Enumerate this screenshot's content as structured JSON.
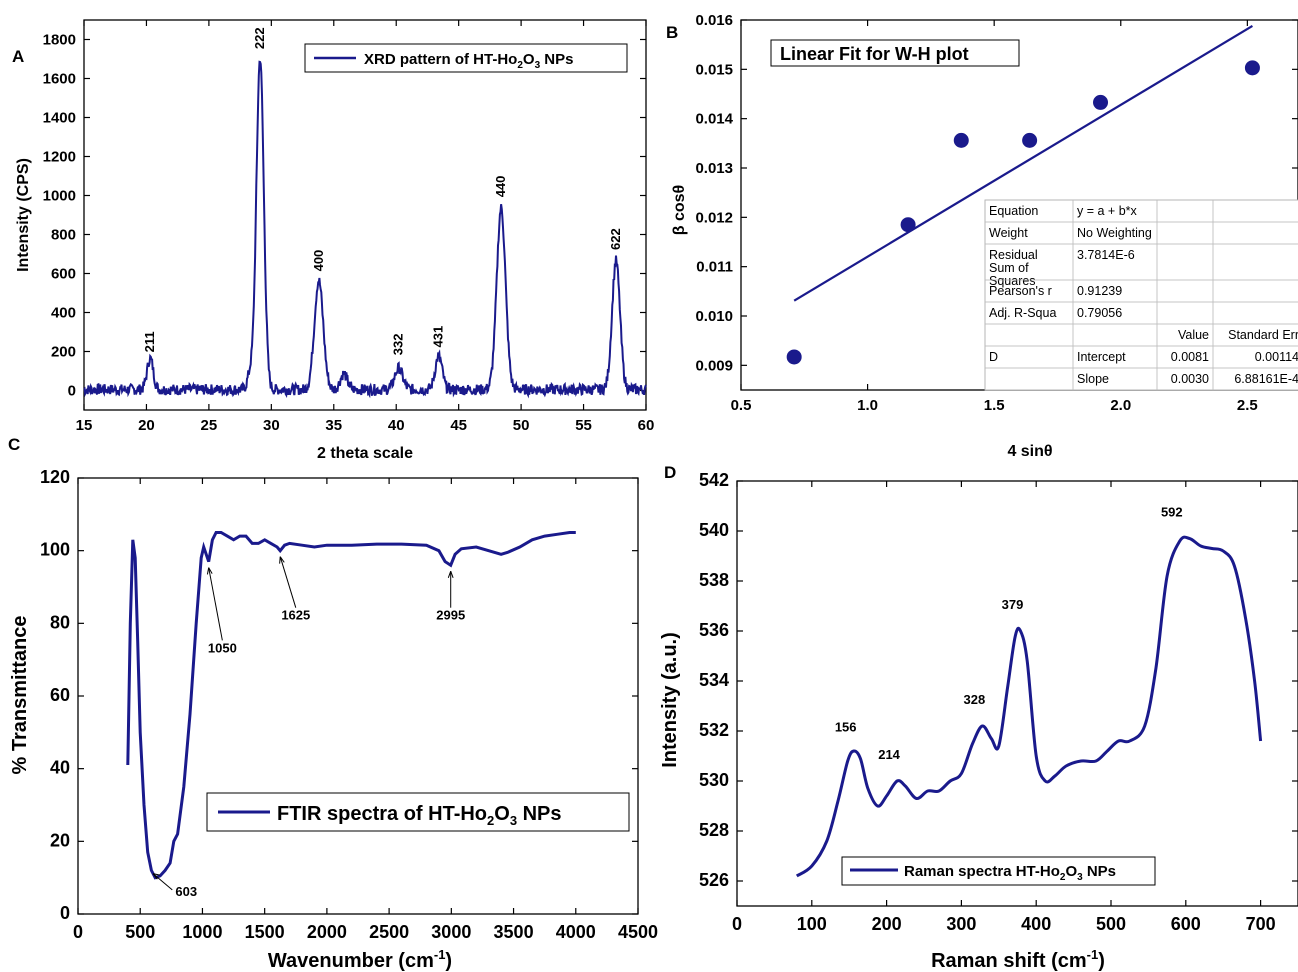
{
  "panels": {
    "A": {
      "letter": "A",
      "chart_data": {
        "type": "line",
        "xlabel": "2 theta scale",
        "ylabel": "Intensity (CPS)",
        "xlim": [
          15,
          60
        ],
        "ylim": [
          -100,
          1900
        ],
        "xticks": [
          "15",
          "20",
          "25",
          "30",
          "35",
          "40",
          "45",
          "50",
          "55",
          "60"
        ],
        "yticks": [
          "0",
          "200",
          "400",
          "600",
          "800",
          "1000",
          "1200",
          "1400",
          "1600",
          "1800"
        ],
        "legend": {
          "text": "XRD pattern of HT-Ho",
          "sub1": "2",
          "mid": "O",
          "sub2": "3",
          "tail": " NPs"
        },
        "series": [
          {
            "color": "#1a1a8c",
            "baseline": 5,
            "peaks": [
              {
                "x": 20.3,
                "h": 160,
                "w": 0.35
              },
              {
                "x": 28.3,
                "h": 80,
                "w": 0.3
              },
              {
                "x": 29.1,
                "h": 1700,
                "w": 0.42
              },
              {
                "x": 33.8,
                "h": 560,
                "w": 0.5
              },
              {
                "x": 35.8,
                "h": 80,
                "w": 0.4
              },
              {
                "x": 40.2,
                "h": 110,
                "w": 0.45
              },
              {
                "x": 43.4,
                "h": 170,
                "w": 0.4
              },
              {
                "x": 48.4,
                "h": 930,
                "w": 0.5
              },
              {
                "x": 57.6,
                "h": 660,
                "w": 0.45
              }
            ],
            "noise": 28
          }
        ],
        "peak_labels": [
          {
            "x": 20.3,
            "y": 165,
            "text": "211"
          },
          {
            "x": 29.1,
            "y": 1720,
            "text": "222"
          },
          {
            "x": 33.8,
            "y": 580,
            "text": "400"
          },
          {
            "x": 40.2,
            "y": 150,
            "text": "332"
          },
          {
            "x": 43.4,
            "y": 190,
            "text": "431"
          },
          {
            "x": 48.4,
            "y": 960,
            "text": "440"
          },
          {
            "x": 57.6,
            "y": 690,
            "text": "622"
          }
        ]
      }
    },
    "B": {
      "letter": "B",
      "chart_data": {
        "type": "scatter",
        "title": "Linear Fit for W-H plot",
        "xlabel": "4 sinθ",
        "ylabel": "β cosθ",
        "xlim": [
          0.5,
          2.7
        ],
        "ylim": [
          0.0085,
          0.016
        ],
        "xticks": [
          "0.5",
          "1.0",
          "1.5",
          "2.0",
          "2.5"
        ],
        "xtick_values": [
          0.5,
          1.0,
          1.5,
          2.0,
          2.5
        ],
        "yticks": [
          "0.009",
          "0.010",
          "0.011",
          "0.012",
          "0.013",
          "0.014",
          "0.015",
          "0.016"
        ],
        "ytick_values": [
          0.009,
          0.01,
          0.011,
          0.012,
          0.013,
          0.014,
          0.015,
          0.016
        ],
        "points": [
          {
            "x": 0.71,
            "y": 0.00917
          },
          {
            "x": 1.16,
            "y": 0.01185
          },
          {
            "x": 1.37,
            "y": 0.01356
          },
          {
            "x": 1.64,
            "y": 0.01356
          },
          {
            "x": 1.92,
            "y": 0.01433
          },
          {
            "x": 2.52,
            "y": 0.01503
          }
        ],
        "fit_line": [
          {
            "x": 0.71,
            "y": 0.01031
          },
          {
            "x": 2.52,
            "y": 0.01588
          }
        ],
        "table": {
          "rows": [
            [
              "Equation",
              "y = a + b*x",
              "",
              ""
            ],
            [
              "Weight",
              "No Weighting",
              "",
              ""
            ],
            [
              "Residual Sum of Squares",
              "3.7814E-6",
              "",
              ""
            ],
            [
              "Pearson's r",
              "0.91239",
              "",
              ""
            ],
            [
              "Adj. R-Squa",
              "0.79056",
              "",
              ""
            ],
            [
              "",
              "",
              "Value",
              "Standard Err"
            ],
            [
              "D",
              "Intercept",
              "0.0081",
              "0.00114"
            ],
            [
              "",
              "Slope",
              "0.0030",
              "6.88161E-4"
            ]
          ]
        }
      }
    },
    "C": {
      "letter": "C",
      "chart_data": {
        "type": "line",
        "xlabel": "Wavenumber (cm",
        "xlabel_sup": "-1",
        "xlabel_tail": ")",
        "ylabel": "% Transmittance",
        "xlim": [
          0,
          4500
        ],
        "ylim": [
          0,
          120
        ],
        "xticks": [
          "0",
          "500",
          "1000",
          "1500",
          "2000",
          "2500",
          "3000",
          "3500",
          "4000",
          "4500"
        ],
        "yticks": [
          "0",
          "20",
          "40",
          "60",
          "80",
          "100",
          "120"
        ],
        "legend": {
          "text": "FTIR spectra of HT-Ho",
          "sub1": "2",
          "mid": "O",
          "sub2": "3",
          "tail": " NPs"
        },
        "series": [
          {
            "color": "#1a1a8c",
            "points": [
              [
                400,
                41
              ],
              [
                420,
                80
              ],
              [
                440,
                103
              ],
              [
                460,
                98
              ],
              [
                480,
                75
              ],
              [
                500,
                50
              ],
              [
                530,
                30
              ],
              [
                560,
                17
              ],
              [
                590,
                12
              ],
              [
                620,
                10
              ],
              [
                660,
                10.5
              ],
              [
                700,
                12
              ],
              [
                740,
                14
              ],
              [
                770,
                20
              ],
              [
                800,
                22
              ],
              [
                850,
                35
              ],
              [
                900,
                55
              ],
              [
                950,
                80
              ],
              [
                990,
                98
              ],
              [
                1010,
                101
              ],
              [
                1030,
                99
              ],
              [
                1050,
                97
              ],
              [
                1080,
                103
              ],
              [
                1110,
                105
              ],
              [
                1150,
                105
              ],
              [
                1200,
                104
              ],
              [
                1250,
                103
              ],
              [
                1300,
                104
              ],
              [
                1350,
                104
              ],
              [
                1400,
                102
              ],
              [
                1450,
                102
              ],
              [
                1500,
                103
              ],
              [
                1550,
                102
              ],
              [
                1600,
                101
              ],
              [
                1625,
                100
              ],
              [
                1660,
                101.5
              ],
              [
                1700,
                102
              ],
              [
                1800,
                101.5
              ],
              [
                1900,
                101
              ],
              [
                2000,
                101.5
              ],
              [
                2200,
                101.5
              ],
              [
                2400,
                101.8
              ],
              [
                2600,
                101.8
              ],
              [
                2800,
                101.5
              ],
              [
                2900,
                100
              ],
              [
                2950,
                97
              ],
              [
                2995,
                96
              ],
              [
                3030,
                99
              ],
              [
                3080,
                100.5
              ],
              [
                3200,
                101
              ],
              [
                3300,
                100
              ],
              [
                3400,
                99
              ],
              [
                3450,
                99.5
              ],
              [
                3550,
                101
              ],
              [
                3650,
                103
              ],
              [
                3750,
                104
              ],
              [
                3850,
                104.5
              ],
              [
                3950,
                105
              ],
              [
                4000,
                105
              ]
            ]
          }
        ],
        "annotations": [
          {
            "label": "1050",
            "tip_x": 1050,
            "tip_y": 97,
            "text_x": 1160,
            "text_y": 72
          },
          {
            "label": "1625",
            "tip_x": 1625,
            "tip_y": 100,
            "text_x": 1750,
            "text_y": 81
          },
          {
            "label": "2995",
            "tip_x": 2995,
            "tip_y": 96,
            "text_x": 2995,
            "text_y": 81
          },
          {
            "label": "603",
            "tip_x": 603,
            "tip_y": 10,
            "text_x": 870,
            "text_y": 5
          }
        ]
      }
    },
    "D": {
      "letter": "D",
      "chart_data": {
        "type": "line",
        "xlabel": "Raman shift (cm",
        "xlabel_sup": "-1",
        "xlabel_tail": ")",
        "ylabel": "Intensity (a.u.)",
        "xlim": [
          0,
          750
        ],
        "ylim": [
          525,
          542
        ],
        "xticks": [
          "0",
          "100",
          "200",
          "300",
          "400",
          "500",
          "600",
          "700"
        ],
        "yticks": [
          "526",
          "528",
          "530",
          "532",
          "534",
          "536",
          "538",
          "540",
          "542"
        ],
        "legend": {
          "text": "Raman spectra HT-Ho",
          "sub1": "2",
          "mid": "O",
          "sub2": "3",
          "tail": " NPs"
        },
        "series": [
          {
            "color": "#1a1a8c",
            "points": [
              [
                80,
                526.2
              ],
              [
                100,
                526.6
              ],
              [
                120,
                527.6
              ],
              [
                135,
                529.2
              ],
              [
                148,
                530.8
              ],
              [
                156,
                531.2
              ],
              [
                165,
                530.9
              ],
              [
                175,
                529.7
              ],
              [
                188,
                529.0
              ],
              [
                200,
                529.4
              ],
              [
                214,
                530.0
              ],
              [
                225,
                529.8
              ],
              [
                240,
                529.3
              ],
              [
                255,
                529.6
              ],
              [
                270,
                529.6
              ],
              [
                285,
                530.0
              ],
              [
                300,
                530.3
              ],
              [
                315,
                531.5
              ],
              [
                328,
                532.2
              ],
              [
                340,
                531.7
              ],
              [
                350,
                531.4
              ],
              [
                362,
                533.8
              ],
              [
                372,
                535.8
              ],
              [
                379,
                536.0
              ],
              [
                388,
                534.8
              ],
              [
                400,
                531.0
              ],
              [
                412,
                530.0
              ],
              [
                425,
                530.2
              ],
              [
                440,
                530.6
              ],
              [
                460,
                530.8
              ],
              [
                480,
                530.8
              ],
              [
                495,
                531.2
              ],
              [
                510,
                531.6
              ],
              [
                525,
                531.6
              ],
              [
                545,
                532.2
              ],
              [
                560,
                534.5
              ],
              [
                575,
                538.2
              ],
              [
                592,
                539.6
              ],
              [
                605,
                539.7
              ],
              [
                620,
                539.4
              ],
              [
                635,
                539.3
              ],
              [
                650,
                539.2
              ],
              [
                665,
                538.6
              ],
              [
                680,
                536.5
              ],
              [
                692,
                534.0
              ],
              [
                700,
                531.6
              ]
            ]
          }
        ],
        "peak_labels": [
          {
            "x": 156,
            "y": 531.5,
            "text": "156"
          },
          {
            "x": 214,
            "y": 530.4,
            "text": "214"
          },
          {
            "x": 328,
            "y": 532.6,
            "text": "328"
          },
          {
            "x": 379,
            "y": 536.4,
            "text": "379"
          },
          {
            "x": 592,
            "y": 540.1,
            "text": "592"
          }
        ]
      }
    }
  }
}
